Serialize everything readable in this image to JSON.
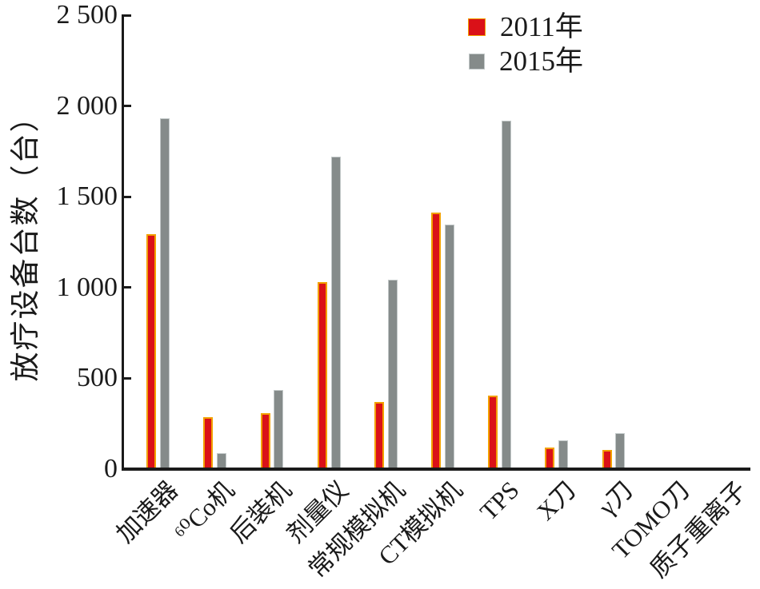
{
  "chart_data": {
    "type": "bar",
    "title": "",
    "xlabel": "",
    "ylabel": "放疗设备台数（台）",
    "categories": [
      "加速器",
      "⁶⁰Co机",
      "后装机",
      "剂量仪",
      "常规模拟机",
      "CT模拟机",
      "TPS",
      "X刀",
      "γ刀",
      "TOMO刀",
      "质子重离子"
    ],
    "series": [
      {
        "name": "2011年",
        "color": "#da1118",
        "border_color": "#f2a000",
        "values": [
          1296,
          288,
          310,
          1030,
          370,
          1415,
          405,
          120,
          105,
          0,
          0
        ]
      },
      {
        "name": "2015年",
        "color": "#858b8a",
        "border_color": "#c2c8c8",
        "values": [
          1931,
          90,
          435,
          1722,
          1043,
          1348,
          1920,
          160,
          200,
          0,
          0
        ]
      }
    ],
    "ylim": [
      0,
      2500
    ],
    "yticks": {
      "values": [
        0,
        500,
        1000,
        1500,
        2000,
        2500
      ],
      "labels": [
        "0",
        "500",
        "1 000",
        "1 500",
        "2 000",
        "2 500"
      ]
    },
    "grid": "off",
    "legend_position": "top-right",
    "axis_color": "#1a1a1a"
  }
}
